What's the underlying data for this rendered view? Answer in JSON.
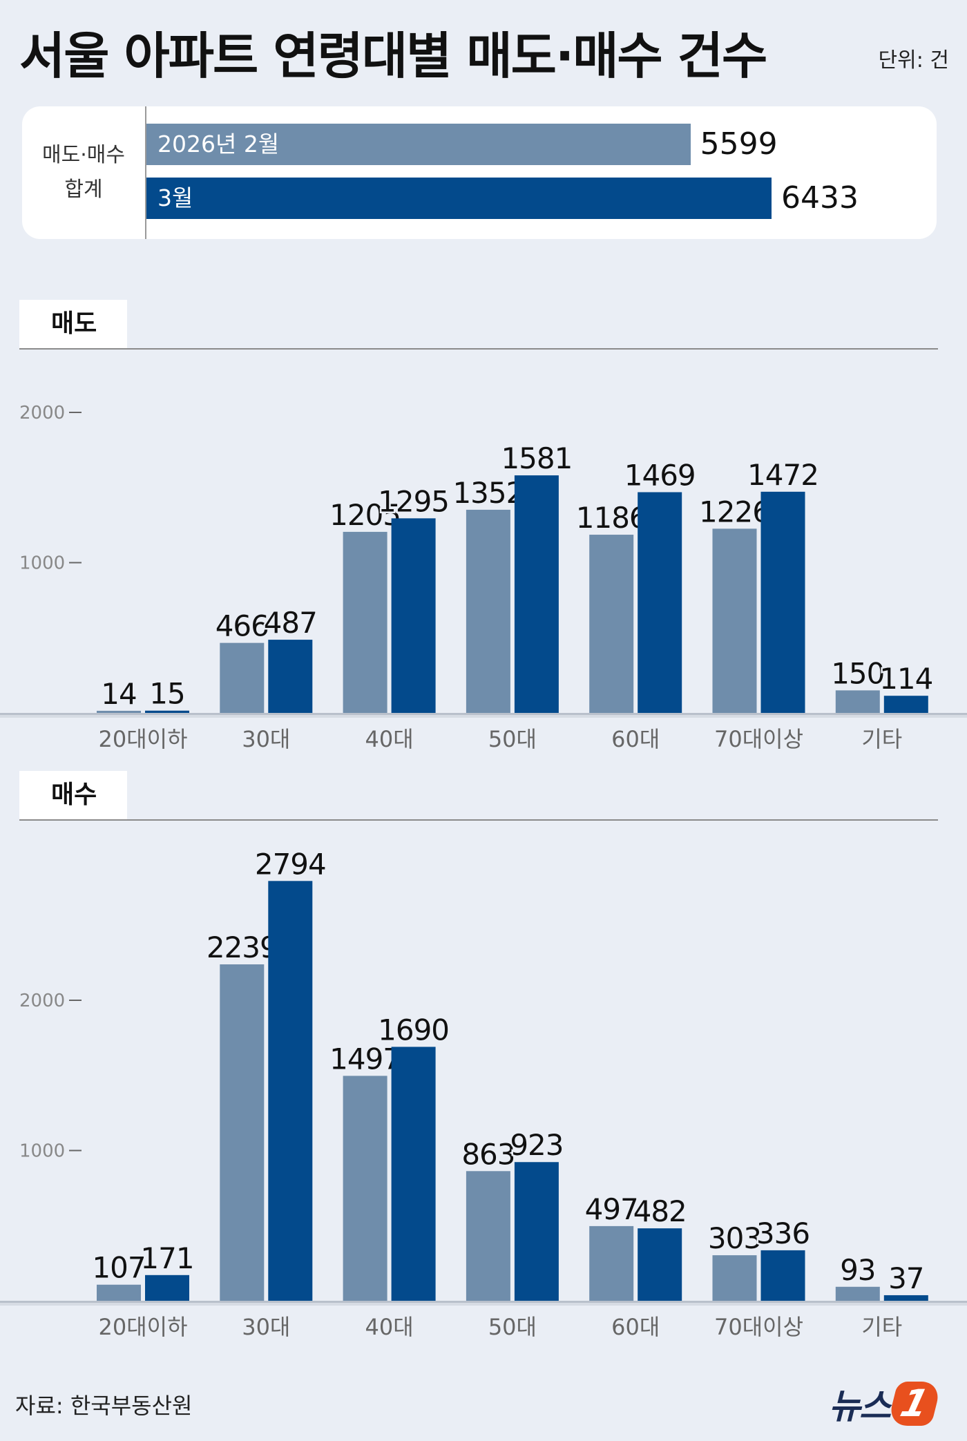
{
  "header": {
    "title": "서울 아파트 연령대별 매도·매수 건수",
    "unit": "단위: 건"
  },
  "colors": {
    "feb": "#6f8dab",
    "mar": "#034a8c",
    "background": "#eaeef5"
  },
  "summary": {
    "label_line1": "매도·매수",
    "label_line2": "합계",
    "bars": [
      {
        "label": "2026년 2월",
        "value": 5599,
        "value_text": "5599"
      },
      {
        "label": "3월",
        "value": 6433,
        "value_text": "6433"
      }
    ]
  },
  "source": "자료: 한국부동산원",
  "logo": {
    "text": "뉴스",
    "mark": "1"
  },
  "chart_data": [
    {
      "type": "bar",
      "title": "매도",
      "categories": [
        "20대이하",
        "30대",
        "40대",
        "50대",
        "60대",
        "70대이상",
        "기타"
      ],
      "series": [
        {
          "values": [
            14,
            466,
            1205,
            1352,
            1186,
            1226,
            150
          ]
        },
        {
          "values": [
            15,
            487,
            1295,
            1581,
            1469,
            1472,
            114
          ]
        }
      ],
      "yticks": [
        1000,
        2000
      ],
      "ylim": [
        0,
        2000
      ],
      "grid": false
    },
    {
      "type": "bar",
      "title": "매수",
      "categories": [
        "20대이하",
        "30대",
        "40대",
        "50대",
        "60대",
        "70대이상",
        "기타"
      ],
      "series": [
        {
          "values": [
            107,
            2239,
            1497,
            863,
            497,
            303,
            93
          ]
        },
        {
          "values": [
            171,
            2794,
            1690,
            923,
            482,
            336,
            37
          ]
        }
      ],
      "yticks": [
        1000,
        2000
      ],
      "ylim": [
        0,
        2794
      ],
      "grid": false
    }
  ]
}
